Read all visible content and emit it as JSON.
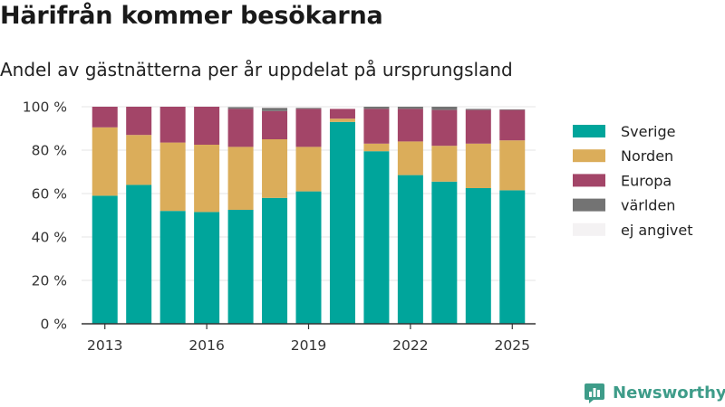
{
  "title": "Härifrån kommer besökarna",
  "subtitle": "Andel av gästnätterna per år uppdelat på ursprungsland",
  "brand": {
    "name": "Newsworthy",
    "icon": "newsworthy-logo-icon"
  },
  "chart_data": {
    "type": "bar",
    "stacked": true,
    "categories": [
      "2013",
      "2014",
      "2015",
      "2016",
      "2017",
      "2018",
      "2019",
      "2020",
      "2021",
      "2022",
      "2023",
      "2024",
      "2025"
    ],
    "x_tick_labels": [
      "2013",
      "2016",
      "2019",
      "2022",
      "2025"
    ],
    "y_tick_labels": [
      "0 %",
      "20 %",
      "40 %",
      "60 %",
      "80 %",
      "100 %"
    ],
    "ylim": [
      0,
      100
    ],
    "grid": true,
    "legend_position": "right",
    "series": [
      {
        "name": "Sverige",
        "color": "#00a59b",
        "values": [
          59,
          64,
          52,
          51.5,
          52.5,
          58,
          61,
          93,
          79.5,
          68.5,
          65.5,
          62.5,
          61.5
        ]
      },
      {
        "name": "Norden",
        "color": "#dbad5a",
        "values": [
          31.5,
          23,
          31.5,
          31,
          29,
          27,
          20.5,
          1.5,
          3.5,
          15.5,
          16.5,
          20.5,
          23
        ]
      },
      {
        "name": "Europa",
        "color": "#a34568",
        "values": [
          9.5,
          13,
          16.5,
          17.5,
          17.5,
          13,
          17.5,
          4.5,
          16,
          15,
          16.5,
          15.5,
          14
        ]
      },
      {
        "name": "världen",
        "color": "#737373",
        "values": [
          0,
          0,
          0,
          0,
          0.8,
          1.5,
          0.5,
          0,
          1,
          1,
          1.5,
          0.5,
          0.3
        ]
      },
      {
        "name": "ej angivet",
        "color": "#f4f2f3",
        "values": [
          0,
          0,
          0,
          0,
          0,
          0.5,
          0.5,
          0,
          0,
          0,
          0,
          0,
          0
        ]
      }
    ]
  }
}
